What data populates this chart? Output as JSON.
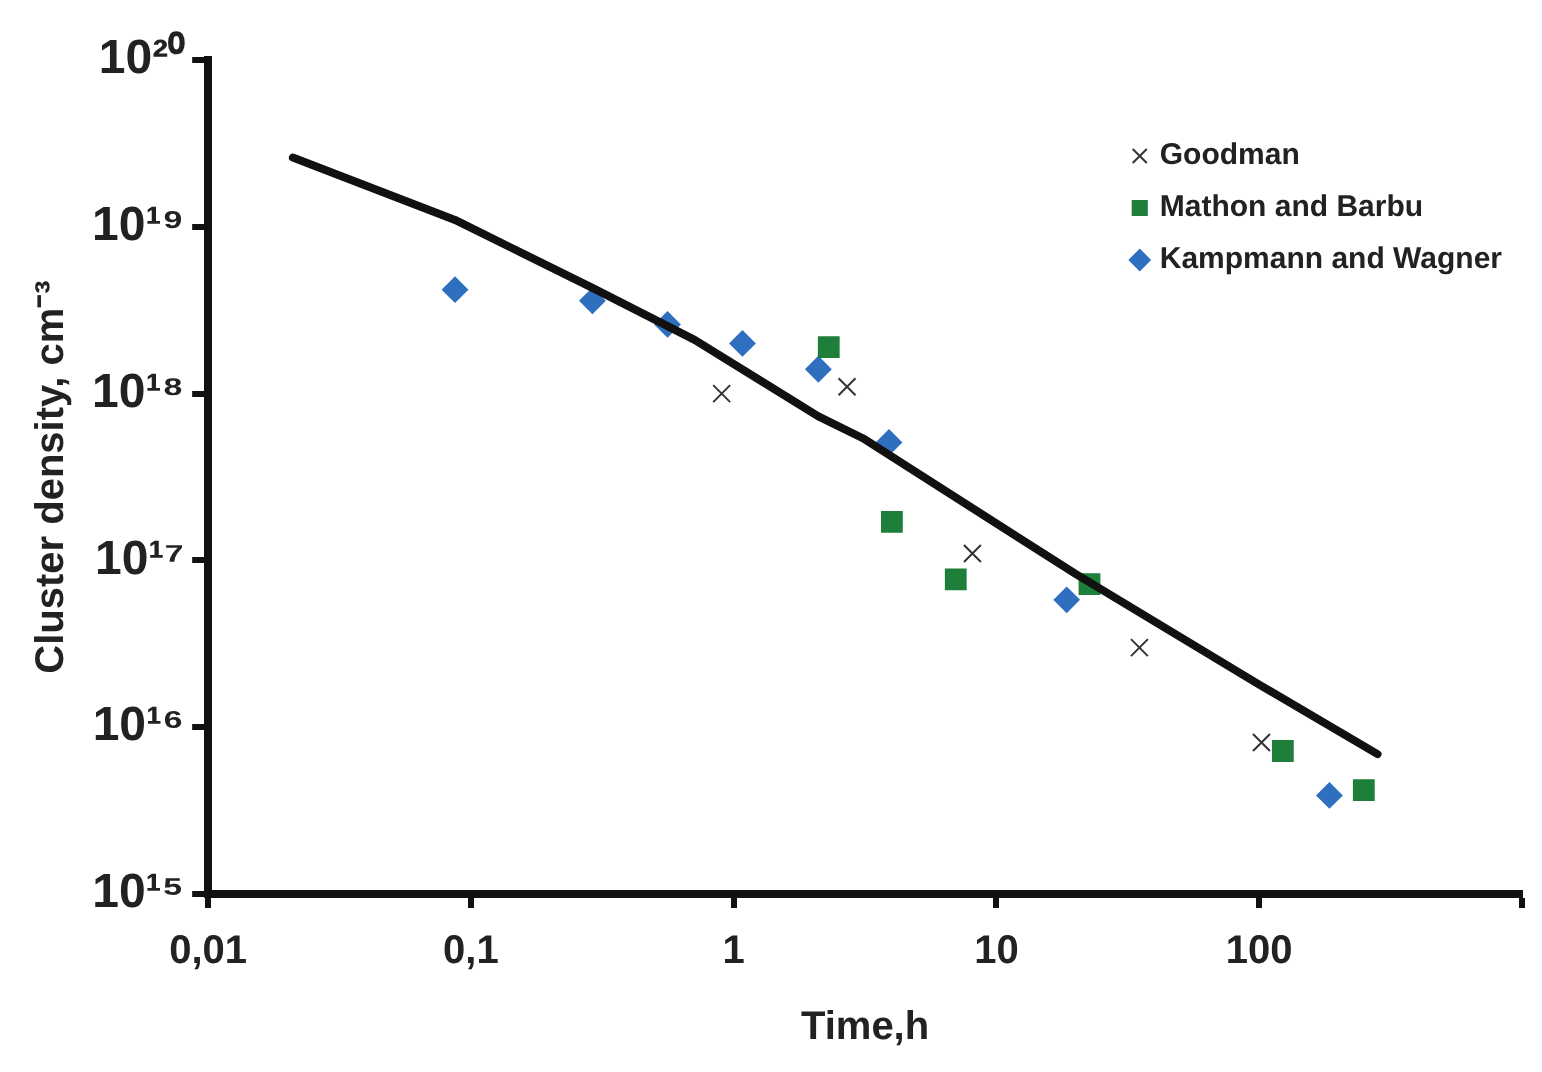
{
  "chart_data": {
    "type": "scatter",
    "xlabel": "Time,h",
    "ylabel": "Cluster density, cm⁻³",
    "log": "xy",
    "grid": false,
    "legend": "top right",
    "xlim": [
      0.01,
      1000
    ],
    "ylim": [
      1000000000000000.0,
      1e+20
    ],
    "xticks": [
      {
        "value": 0.01,
        "label": "0,01"
      },
      {
        "value": 0.1,
        "label": "0,1"
      },
      {
        "value": 1,
        "label": "1"
      },
      {
        "value": 10,
        "label": "10"
      },
      {
        "value": 100,
        "label": "100"
      },
      {
        "value": 1000,
        "label": null
      }
    ],
    "yticks": [
      {
        "value": 1000000000000000.0,
        "label": "10¹⁵"
      },
      {
        "value": 1e+16,
        "label": "10¹⁶"
      },
      {
        "value": 1e+17,
        "label": "10¹⁷"
      },
      {
        "value": 1e+18,
        "label": "10¹⁸"
      },
      {
        "value": 1e+19,
        "label": "10¹⁹"
      },
      {
        "value": 1e+20,
        "label": "10²⁰"
      }
    ],
    "series": [
      {
        "type": "line",
        "color": "#111111",
        "marker": "none",
        "x": [
          0.021,
          0.087,
          0.29,
          0.71,
          2.1,
          3.1,
          20,
          100,
          282
        ],
        "values": [
          2.6e+19,
          1.1e+19,
          4.3e+18,
          2.1e+18,
          7.3e+17,
          5.4e+17,
          8.3e+16,
          1.8e+16,
          6900000000000000.0
        ]
      },
      {
        "name": "Goodman",
        "color": "#333333",
        "marker": "cross",
        "x": [
          0.9,
          2.7,
          8.1,
          35,
          102
        ],
        "values": [
          1e+18,
          1.1e+18,
          1.1e+17,
          3e+16,
          8100000000000000.0
        ]
      },
      {
        "name": "Mathon and Barbu",
        "color": "#1e7f3a",
        "marker": "square",
        "x": [
          2.3,
          4.0,
          7.0,
          22.6,
          123,
          250
        ],
        "values": [
          1.9e+18,
          1.7e+17,
          7.7e+16,
          7.2e+16,
          7200000000000000.0,
          4200000000000000.0
        ]
      },
      {
        "name": "Kampmann and Wagner",
        "color": "#2e6fc0",
        "marker": "diamond",
        "x": [
          0.087,
          0.29,
          0.56,
          1.08,
          2.1,
          3.9,
          18.5,
          185
        ],
        "values": [
          4.2e+18,
          3.6e+18,
          2.6e+18,
          2e+18,
          1.4e+18,
          5.1e+17,
          5.8e+16,
          3900000000000000.0
        ]
      }
    ]
  }
}
